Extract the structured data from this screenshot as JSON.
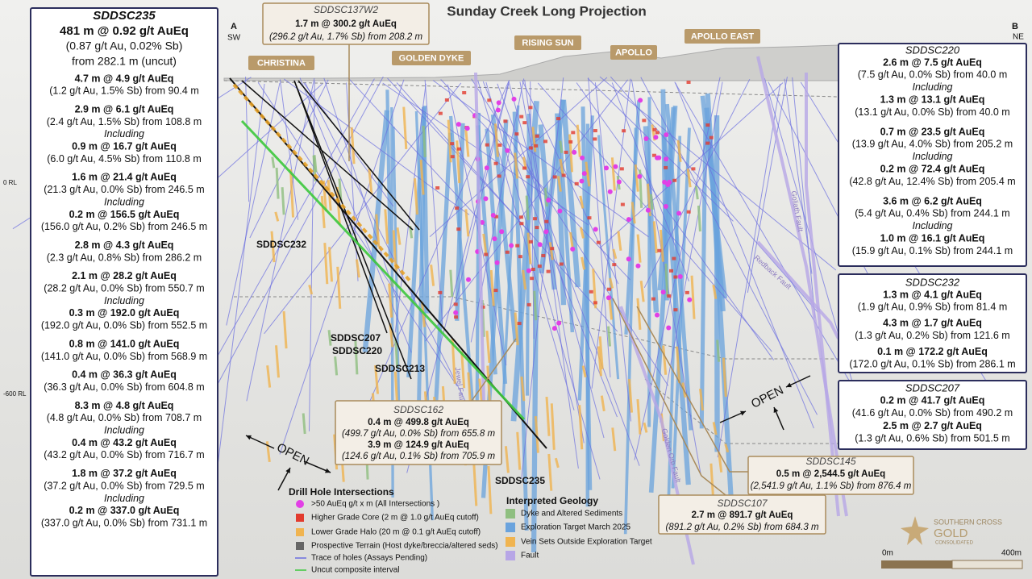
{
  "title": "Sunday Creek Long Projection",
  "section": {
    "start": {
      "letter": "A",
      "direction": "SW"
    },
    "end": {
      "letter": "B",
      "direction": "NE"
    }
  },
  "rl_labels": [
    "0 RL",
    "-600 RL"
  ],
  "prospects": [
    "CHRISTINA",
    "GOLDEN DYKE",
    "RISING SUN",
    "APOLLO",
    "APOLLO EAST"
  ],
  "hole_labels": [
    "SDDSC232",
    "SDDSC207",
    "SDDSC220",
    "SDDSC213",
    "SDDSC235"
  ],
  "faults": [
    "Goliath Fault",
    "Redback Fault",
    "Golden Orb Fault",
    "Jewel Fault"
  ],
  "open_labels": [
    "OPEN",
    "OPEN"
  ],
  "summary_box": {
    "hole": "SDDSC235",
    "headline": "481 m @ 0.92 g/t AuEq",
    "grades": "(0.87 g/t Au, 0.02% Sb)",
    "depth": "from 282.1 m (uncut)",
    "lines": [
      "4.7 m @ 4.9 g/t AuEq",
      "(1.2 g/t Au, 1.5% Sb) from 90.4 m",
      "2.9 m @ 6.1 g/t AuEq",
      "(2.4 g/t Au, 1.5% Sb) from 108.8 m",
      "Including",
      "0.9 m @ 16.7 g/t AuEq",
      "(6.0 g/t Au, 4.5% Sb) from 110.8 m",
      "1.6 m @ 21.4 g/t AuEq",
      "(21.3 g/t Au, 0.0% Sb) from 246.5 m",
      "Including",
      "0.2 m @ 156.5 g/t AuEq",
      "(156.0 g/t Au, 0.2% Sb) from 246.5 m",
      "2.8 m @ 4.3 g/t AuEq",
      "(2.3 g/t Au, 0.8% Sb) from 286.2 m",
      "2.1 m @ 28.2 g/t AuEq",
      "(28.2 g/t Au, 0.0% Sb) from 550.7 m",
      "Including",
      "0.3 m @ 192.0 g/t AuEq",
      "(192.0 g/t Au, 0.0% Sb) from 552.5 m",
      "0.8 m @ 141.0 g/t AuEq",
      "(141.0 g/t Au, 0.0% Sb) from 568.9 m",
      "0.4 m @ 36.3 g/t AuEq",
      "(36.3 g/t Au, 0.0% Sb) from 604.8 m",
      "8.3 m @ 4.8 g/t AuEq",
      "(4.8 g/t Au, 0.0% Sb) from 708.7 m",
      "Including",
      "0.4 m @ 43.2 g/t AuEq",
      "(43.2 g/t Au, 0.0% Sb) from 716.7 m",
      "1.8 m @ 37.2 g/t AuEq",
      "(37.2 g/t Au, 0.0% Sb) from 729.5 m",
      "Including",
      "0.2 m @ 337.0 g/t AuEq",
      "(337.0 g/t Au, 0.0% Sb) from 731.1 m"
    ]
  },
  "callouts": [
    {
      "hole": "SDDSC137W2",
      "lines": [
        "1.7 m @ 300.2 g/t AuEq",
        "(296.2 g/t Au, 1.7% Sb) from 208.2 m"
      ]
    },
    {
      "hole": "SDDSC220",
      "lines": [
        "2.6 m @ 7.5 g/t AuEq",
        "(7.5 g/t Au, 0.0% Sb) from 40.0 m",
        "Including",
        "1.3 m @ 13.1 g/t AuEq",
        "(13.1 g/t Au, 0.0% Sb) from 40.0 m",
        "0.7 m @ 23.5 g/t AuEq",
        "(13.9 g/t Au, 4.0% Sb) from 205.2 m",
        "Including",
        "0.2 m @ 72.4 g/t AuEq",
        "(42.8 g/t Au, 12.4% Sb) from 205.4 m",
        "3.6 m @ 6.2 g/t AuEq",
        "(5.4 g/t Au, 0.4% Sb) from 244.1 m",
        "Including",
        "1.0 m @ 16.1 g/t AuEq",
        "(15.9 g/t Au, 0.1% Sb) from 244.1 m"
      ]
    },
    {
      "hole": "SDDSC232",
      "lines": [
        "1.3 m @ 4.1 g/t AuEq",
        "(1.9 g/t Au, 0.9% Sb) from 81.4 m",
        "4.3 m @ 1.7 g/t AuEq",
        "(1.3 g/t Au, 0.2% Sb) from 121.6 m",
        "0.1 m @ 172.2 g/t AuEq",
        "(172.0 g/t Au, 0.1% Sb) from 286.1 m"
      ]
    },
    {
      "hole": "SDDSC207",
      "lines": [
        "0.2 m @ 41.7 g/t AuEq",
        "(41.6 g/t Au, 0.0% Sb) from 490.2 m",
        "2.5 m @ 2.7 g/t AuEq",
        "(1.3 g/t Au, 0.6% Sb) from 501.5 m"
      ]
    },
    {
      "hole": "SDDSC162",
      "lines": [
        "0.4 m @ 499.8 g/t AuEq",
        "(499.7 g/t Au, 0.0% Sb) from 655.8 m",
        "3.9 m @ 124.9 g/t AuEq",
        "(124.6 g/t Au, 0.1% Sb) from 705.9 m"
      ]
    },
    {
      "hole": "SDDSC145",
      "lines": [
        "0.5 m @ 2,544.5 g/t AuEq",
        "(2,541.9 g/t Au, 1.1% Sb) from 876.4 m"
      ]
    },
    {
      "hole": "SDDSC107",
      "lines": [
        "2.7 m @ 891.7 g/t AuEq",
        "(891.2 g/t Au, 0.2% Sb) from 684.3 m"
      ]
    }
  ],
  "legend": {
    "intersections": {
      "title": "Drill Hole Intersections",
      "items": [
        ">50 AuEq g/t x m (All Intersections )",
        "Higher Grade Core (2 m @ 1.0 g/t AuEq cutoff)",
        "Lower Grade Halo (20 m @ 0.1 g/t AuEq cutoff)",
        "Prospective Terrain (Host dyke/breccia/altered seds)",
        "Trace of holes (Assays Pending)",
        "Uncut composite interval"
      ]
    },
    "geology": {
      "title": "Interpreted Geology",
      "items": [
        "Dyke and Altered Sediments",
        "Exploration Target March 2025",
        "Vein Sets Outside Exploration Target",
        "Fault"
      ]
    }
  },
  "logo": {
    "name": "SOUTHERN CROSS",
    "word": "GOLD",
    "sub": "CONSOLIDATED"
  },
  "scale_bar": [
    "0m",
    "400m"
  ]
}
